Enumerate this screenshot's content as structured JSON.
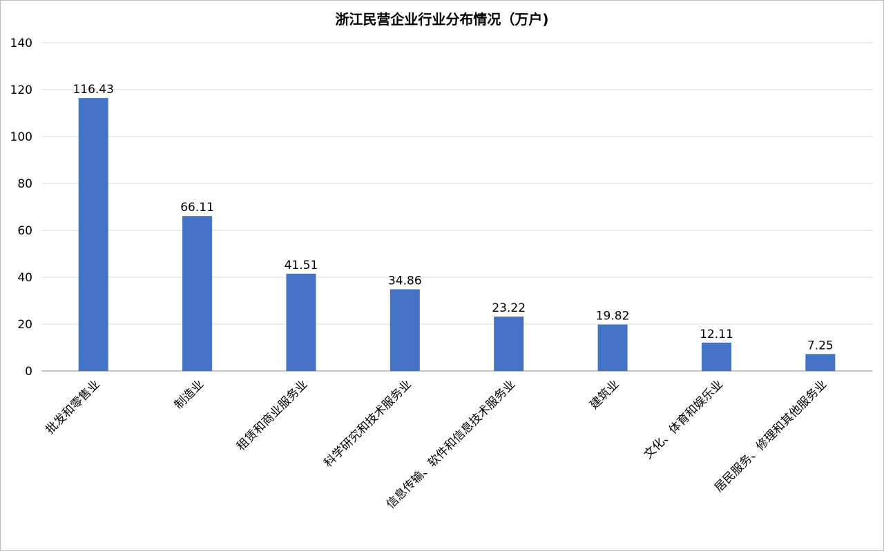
{
  "chart_data": {
    "type": "bar",
    "title": "浙江民营企业行业分布情况（万户)",
    "xlabel": "",
    "ylabel": "",
    "ylim": [
      0,
      140
    ],
    "yticks": [
      0,
      20,
      40,
      60,
      80,
      100,
      120,
      140
    ],
    "grid": true,
    "legend": "none",
    "bar_color": "#4472C4",
    "categories": [
      "批发和零售业",
      "制造业",
      "租赁和商业服务业",
      "科学研究和技术服务业",
      "信息传输、软件和信息技术服务业",
      "建筑业",
      "文化、体育和娱乐业",
      "居民服务、修理和其他服务业"
    ],
    "values": [
      116.43,
      66.11,
      41.51,
      34.86,
      23.22,
      19.82,
      12.11,
      7.25
    ],
    "data_labels": [
      "116.43",
      "66.11",
      "41.51",
      "34.86",
      "23.22",
      "19.82",
      "12.11",
      "7.25"
    ]
  }
}
